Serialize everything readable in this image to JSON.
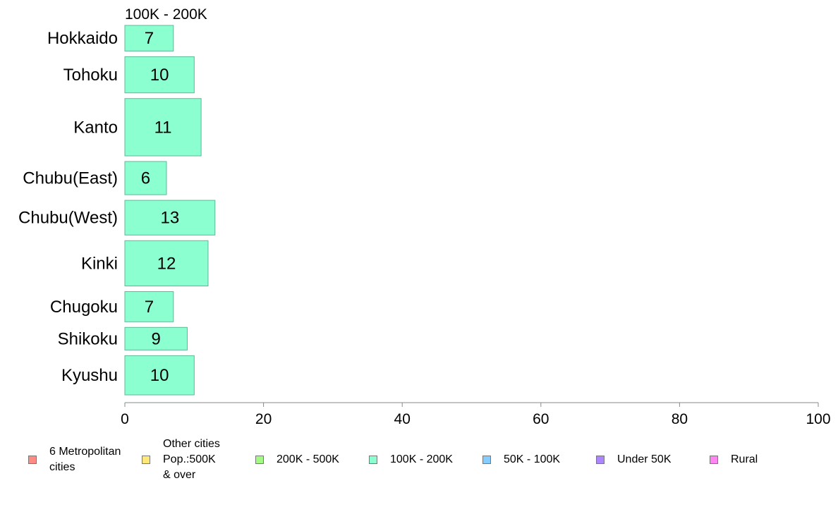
{
  "chart_data": {
    "type": "bar",
    "orientation": "horizontal",
    "panel_title": "100K - 200K",
    "categories": [
      "Hokkaido",
      "Tohoku",
      "Kanto",
      "Chubu(East)",
      "Chubu(West)",
      "Kinki",
      "Chugoku",
      "Shikoku",
      "Kyushu"
    ],
    "values": [
      7,
      10,
      11,
      6,
      13,
      12,
      7,
      9,
      10
    ],
    "data_labels": [
      "7",
      "10",
      "11",
      "6",
      "13",
      "12",
      "7",
      "9",
      "10"
    ],
    "bar_relative_widths": [
      0.85,
      1.2,
      1.9,
      1.1,
      1.15,
      1.5,
      1.0,
      0.75,
      1.3
    ],
    "xlim": [
      0,
      100
    ],
    "x_ticks": [
      0,
      20,
      40,
      60,
      80,
      100
    ],
    "x_tick_labels": [
      "0",
      "20",
      "40",
      "60",
      "80",
      "100"
    ],
    "grid": false,
    "bar_color": "#8cffd1",
    "bar_border_color": "#5fb897",
    "axis_color": "#888888",
    "legend_position": "bottom",
    "legend": [
      {
        "label": "6 Metropolitan\ncities",
        "color": "#ff8c84"
      },
      {
        "label": "Other cities\nPop.:500K\n & over",
        "color": "#ffe87a"
      },
      {
        "label": "200K - 500K",
        "color": "#a2fa83"
      },
      {
        "label": "100K - 200K",
        "color": "#8cffd1"
      },
      {
        "label": "50K - 100K",
        "color": "#86ccff"
      },
      {
        "label": "Under 50K",
        "color": "#ad86ff"
      },
      {
        "label": "Rural",
        "color": "#ff86f0"
      }
    ]
  }
}
